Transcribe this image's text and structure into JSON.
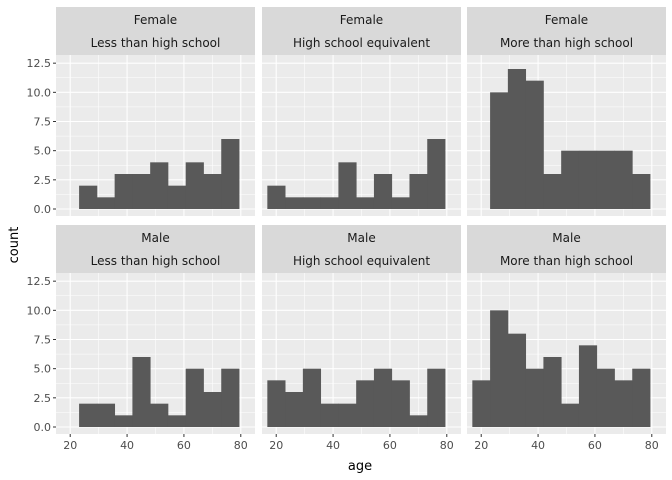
{
  "chart_data": {
    "type": "bar",
    "subtype": "faceted-histogram",
    "xlabel": "age",
    "ylabel": "count",
    "xlim": [
      15,
      85
    ],
    "ylim": [
      -0.6,
      13.2
    ],
    "xticks": [
      20,
      40,
      60,
      80
    ],
    "yticks": [
      0,
      2.5,
      5,
      7.5,
      10,
      12.5
    ],
    "ytick_labels": [
      "0.0",
      "2.5",
      "5.0",
      "7.5",
      "10.0",
      "12.5"
    ],
    "grid": true,
    "bin_width": 6.25,
    "bin_start": 16.875,
    "panels": [
      {
        "row": 0,
        "col": 0,
        "sex": "Female",
        "education": "Less than high school",
        "values": [
          0,
          2,
          1,
          3,
          3,
          4,
          2,
          4,
          3,
          6,
          0
        ]
      },
      {
        "row": 0,
        "col": 1,
        "sex": "Female",
        "education": "High school equivalent",
        "values": [
          2,
          1,
          1,
          1,
          4,
          1,
          3,
          1,
          3,
          6,
          0
        ]
      },
      {
        "row": 0,
        "col": 2,
        "sex": "Female",
        "education": "More than high school",
        "values": [
          0,
          10,
          12,
          11,
          3,
          5,
          5,
          5,
          5,
          3,
          0
        ]
      },
      {
        "row": 1,
        "col": 0,
        "sex": "Male",
        "education": "Less than high school",
        "values": [
          0,
          2,
          2,
          1,
          6,
          2,
          1,
          5,
          3,
          5,
          0
        ]
      },
      {
        "row": 1,
        "col": 1,
        "sex": "Male",
        "education": "High school equivalent",
        "values": [
          4,
          3,
          5,
          2,
          2,
          4,
          5,
          4,
          1,
          5,
          0
        ]
      },
      {
        "row": 1,
        "col": 2,
        "sex": "Male",
        "education": "More than high school",
        "values": [
          4,
          10,
          8,
          5,
          6,
          2,
          7,
          5,
          4,
          5,
          0
        ]
      }
    ]
  }
}
